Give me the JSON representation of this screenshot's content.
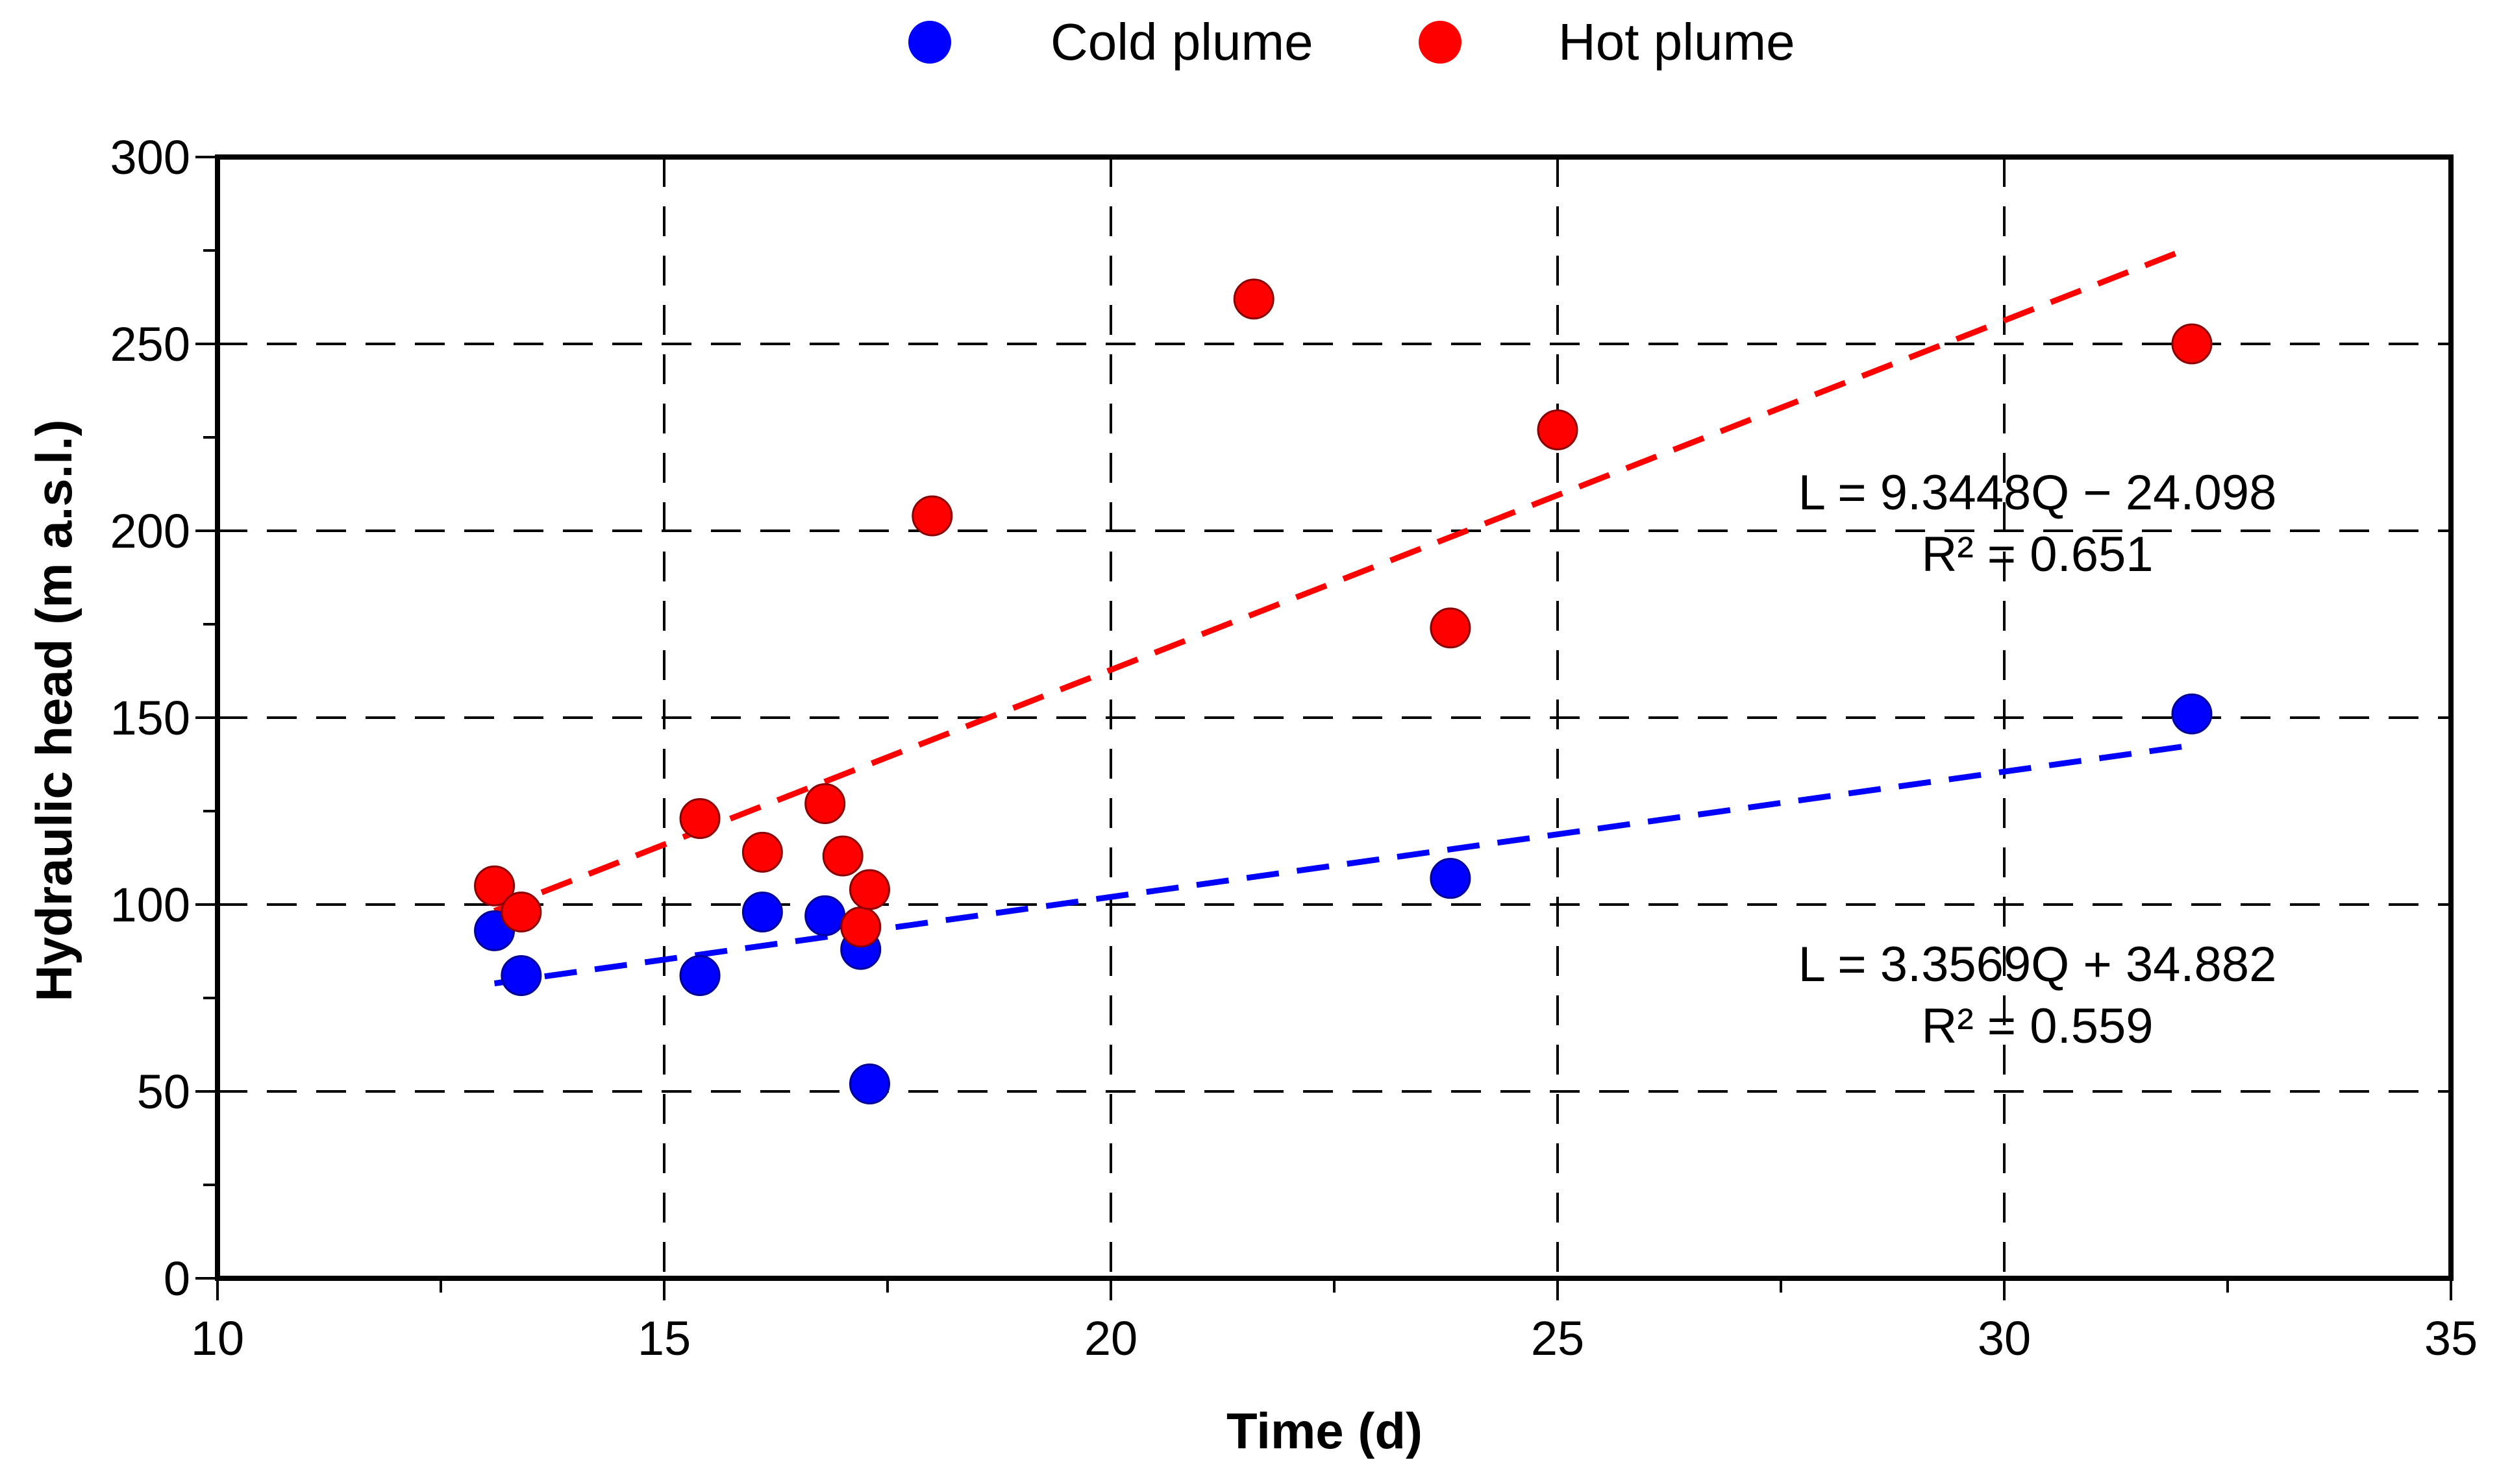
{
  "chart_data": {
    "type": "scatter",
    "title": "",
    "xlabel": "Time (d)",
    "ylabel": "Hydraulic head (m a.s.l.)",
    "xlim": [
      10,
      35
    ],
    "ylim": [
      0,
      300
    ],
    "xticks": [
      10,
      15,
      20,
      25,
      30,
      35
    ],
    "yticks": [
      0,
      50,
      100,
      150,
      200,
      250,
      300
    ],
    "x_minor_step": 2.5,
    "y_minor_step": 25,
    "grid": true,
    "legend_position": "top-center",
    "series": [
      {
        "name": "Cold plume",
        "color": "#0000FF",
        "points": [
          {
            "x": 13.1,
            "y": 93
          },
          {
            "x": 13.4,
            "y": 81
          },
          {
            "x": 15.4,
            "y": 81
          },
          {
            "x": 16.1,
            "y": 98
          },
          {
            "x": 16.8,
            "y": 97
          },
          {
            "x": 17.2,
            "y": 88
          },
          {
            "x": 17.3,
            "y": 52
          },
          {
            "x": 23.8,
            "y": 107
          },
          {
            "x": 32.1,
            "y": 151
          }
        ],
        "trendline": {
          "x": [
            13.1,
            32.1
          ],
          "y": [
            78.9,
            142.6
          ]
        },
        "equation": "L = 3.3569Q + 34.882",
        "r2": "R² = 0.559"
      },
      {
        "name": "Hot plume",
        "color": "#FF0000",
        "points": [
          {
            "x": 13.1,
            "y": 105
          },
          {
            "x": 13.4,
            "y": 98
          },
          {
            "x": 15.4,
            "y": 123
          },
          {
            "x": 16.1,
            "y": 114
          },
          {
            "x": 16.8,
            "y": 127
          },
          {
            "x": 17.0,
            "y": 113
          },
          {
            "x": 17.2,
            "y": 94
          },
          {
            "x": 17.3,
            "y": 104
          },
          {
            "x": 18.0,
            "y": 204
          },
          {
            "x": 21.6,
            "y": 262
          },
          {
            "x": 23.8,
            "y": 174
          },
          {
            "x": 25.0,
            "y": 227
          },
          {
            "x": 32.1,
            "y": 250
          }
        ],
        "trendline": {
          "x": [
            13.1,
            32.1
          ],
          "y": [
            98.3,
            275.9
          ]
        },
        "equation": "L = 9.3448Q − 24.098",
        "r2": "R² = 0.651"
      }
    ]
  }
}
